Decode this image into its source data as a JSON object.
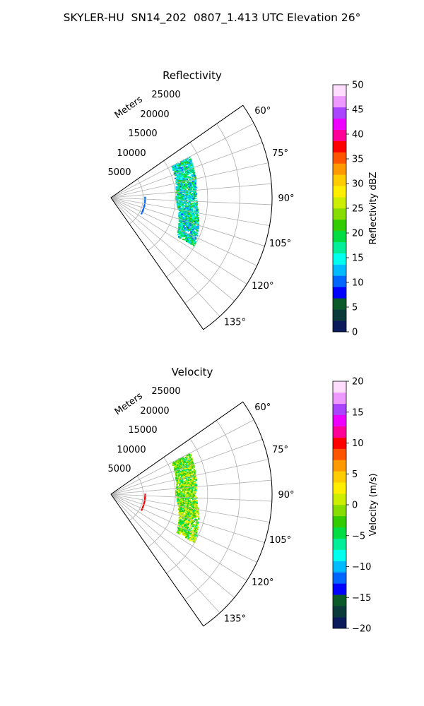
{
  "figure_title": "SKYLER-HU  SN14_202  0807_1.413 UTC Elevation 26°",
  "chart_data": [
    {
      "type": "polar-sector",
      "title": "Reflectivity",
      "radial_label": "Meters",
      "radial_ticks": [
        5000,
        10000,
        15000,
        20000,
        25000
      ],
      "radial_tick_labels": [
        "5000",
        "10000",
        "15000",
        "20000",
        "25000"
      ],
      "rlim": [
        0,
        25000
      ],
      "theta_ticks_deg": [
        60,
        75,
        90,
        105,
        120,
        135
      ],
      "theta_tick_labels": [
        "60°",
        "75°",
        "90°",
        "105°",
        "120°",
        "135°"
      ],
      "theta_range_deg": [
        55,
        145
      ],
      "grid": true,
      "colorbar": {
        "label": "Reflectivity dBZ",
        "range": [
          0,
          50
        ],
        "ticks": [
          0,
          5,
          10,
          15,
          20,
          25,
          30,
          35,
          40,
          45,
          50
        ],
        "tick_labels": [
          "0",
          "5",
          "10",
          "15",
          "20",
          "25",
          "30",
          "35",
          "40",
          "45",
          "50"
        ]
      },
      "echo_band": {
        "azimuth_deg": [
          62,
          120
        ],
        "range_m": [
          9000,
          15000
        ],
        "value_range": [
          10,
          22
        ]
      }
    },
    {
      "type": "polar-sector",
      "title": "Velocity",
      "radial_label": "Meters",
      "radial_ticks": [
        5000,
        10000,
        15000,
        20000,
        25000
      ],
      "radial_tick_labels": [
        "5000",
        "10000",
        "15000",
        "20000",
        "25000"
      ],
      "rlim": [
        0,
        25000
      ],
      "theta_ticks_deg": [
        60,
        75,
        90,
        105,
        120,
        135
      ],
      "theta_tick_labels": [
        "60°",
        "75°",
        "90°",
        "105°",
        "120°",
        "135°"
      ],
      "theta_range_deg": [
        55,
        145
      ],
      "grid": true,
      "colorbar": {
        "label": "Velocity (m/s)",
        "range": [
          -20,
          20
        ],
        "ticks": [
          -20,
          -15,
          -10,
          -5,
          0,
          5,
          10,
          15,
          20
        ],
        "tick_labels": [
          "−20",
          "−15",
          "−10",
          "−5",
          "0",
          "5",
          "10",
          "15",
          "20"
        ]
      },
      "echo_band": {
        "azimuth_deg": [
          62,
          120
        ],
        "range_m": [
          9000,
          15000
        ],
        "value_range": [
          -6,
          3
        ]
      }
    }
  ],
  "colormap": [
    "#0a1a5a",
    "#0a3a3a",
    "#0a5a2a",
    "#0000ff",
    "#0066ff",
    "#00bbff",
    "#00ffee",
    "#00ee99",
    "#00dd44",
    "#33cc00",
    "#88dd00",
    "#ccee00",
    "#ffee00",
    "#ffcc00",
    "#ff9900",
    "#ff5500",
    "#ff0000",
    "#ff0099",
    "#ee00ff",
    "#aa44ff",
    "#ee99ff",
    "#ffddff"
  ]
}
